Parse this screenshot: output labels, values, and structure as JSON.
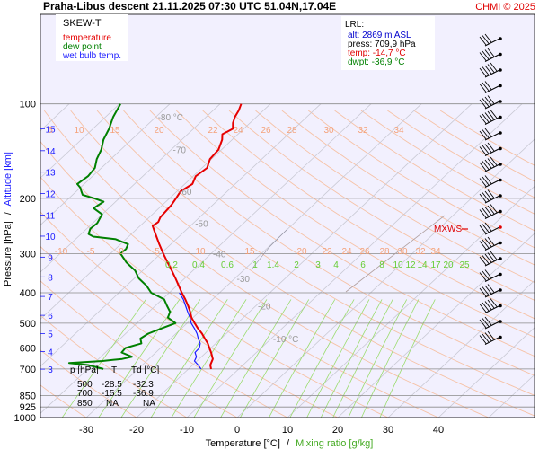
{
  "header": {
    "title": "Praha-Libus   descent   21.11.2025 07:30 UTC   51.04N,17.04E",
    "credit": "CHMI © 2025"
  },
  "legend": {
    "heading": "SKEW-T",
    "items": [
      {
        "label": "temperature",
        "color": "#e60000"
      },
      {
        "label": "dew point",
        "color": "#008000"
      },
      {
        "label": "wet bulb temp.",
        "color": "#1a1aff"
      }
    ]
  },
  "lrl_box": {
    "heading": "LRL:",
    "lines": [
      {
        "text": "alt: 2869 m ASL",
        "color": "#0000cc"
      },
      {
        "text": "press: 709,9 hPa",
        "color": "#000000"
      },
      {
        "text": "temp: -14,7 °C",
        "color": "#e00000"
      },
      {
        "text": "dwpt: -36,9 °C",
        "color": "#008000"
      }
    ]
  },
  "summary_table": {
    "headers": [
      "p [hPa]",
      "T",
      "Td [°C]"
    ],
    "rows": [
      [
        "500",
        "-28.5",
        "-32.3"
      ],
      [
        "700",
        "-15.5",
        "-36.9"
      ],
      [
        "850",
        "NA",
        "NA"
      ]
    ]
  },
  "mxws_label": "MXWS",
  "chart_data": {
    "type": "line",
    "subtype": "skew-t log-p",
    "xlabel": "Temperature [°C]",
    "xlabel_sep": "/",
    "xlabel2": "Mixing ratio [g/kg]",
    "ylabel": "Pressure [hPa]",
    "ylabel_sep": "/",
    "ylabel2": "Altitude [km]",
    "y_scale": "log",
    "y_ticks": [
      100,
      200,
      300,
      400,
      500,
      600,
      700,
      850,
      925,
      1000
    ],
    "altitude_ticks_km": [
      3,
      4,
      5,
      6,
      7,
      8,
      9,
      10,
      11,
      12,
      13,
      14,
      15
    ],
    "x_ticks": [
      -30,
      -20,
      -10,
      0,
      10,
      20,
      30,
      40
    ],
    "isotherm_labels": [
      {
        "t": -80,
        "text": "-80 °C"
      },
      {
        "t": -70,
        "text": "-70"
      },
      {
        "t": -60,
        "text": "-60"
      },
      {
        "t": -50,
        "text": "-50"
      },
      {
        "t": -40,
        "text": "-40"
      },
      {
        "t": -30,
        "text": "-30"
      },
      {
        "t": -20,
        "text": "-20"
      },
      {
        "t": -10,
        "text": "-10 °C"
      }
    ],
    "dry_adiabat_labels_200hPa": [
      "5",
      "10",
      "15",
      "20",
      "22",
      "24",
      "26",
      "28",
      "30",
      "32",
      "34"
    ],
    "dry_adiabat_labels_400hPa": [
      "-10",
      "-5",
      "0",
      "5",
      "10",
      "15",
      "20",
      "22",
      "24",
      "26",
      "28",
      "30",
      "32",
      "34"
    ],
    "mixing_ratio_labels": [
      "0.2",
      "0.4",
      "0.6",
      "1",
      "1.4",
      "2",
      "3",
      "4",
      "6",
      "8",
      "10",
      "12",
      "14",
      "17",
      "20",
      "25"
    ],
    "series": [
      {
        "name": "temperature",
        "color": "#e60000",
        "points": [
          [
            700,
            -15.5
          ],
          [
            680,
            -16.5
          ],
          [
            650,
            -17.3
          ],
          [
            620,
            -19.0
          ],
          [
            600,
            -20.3
          ],
          [
            580,
            -21.6
          ],
          [
            560,
            -23.2
          ],
          [
            540,
            -24.8
          ],
          [
            520,
            -26.7
          ],
          [
            500,
            -28.5
          ],
          [
            480,
            -30.3
          ],
          [
            460,
            -31.8
          ],
          [
            440,
            -33.5
          ],
          [
            420,
            -35.4
          ],
          [
            400,
            -37.5
          ],
          [
            380,
            -39.6
          ],
          [
            360,
            -41.8
          ],
          [
            340,
            -44.2
          ],
          [
            320,
            -46.8
          ],
          [
            300,
            -49.5
          ],
          [
            280,
            -52.3
          ],
          [
            260,
            -55.2
          ],
          [
            245,
            -57.5
          ],
          [
            238,
            -57.2
          ],
          [
            230,
            -57.8
          ],
          [
            220,
            -58.0
          ],
          [
            210,
            -58.2
          ],
          [
            200,
            -58.7
          ],
          [
            190,
            -59.3
          ],
          [
            180,
            -58.5
          ],
          [
            170,
            -59.5
          ],
          [
            160,
            -59.0
          ],
          [
            150,
            -60.3
          ],
          [
            140,
            -60.6
          ],
          [
            130,
            -62.0
          ],
          [
            125,
            -63.1
          ],
          [
            120,
            -62.2
          ],
          [
            115,
            -63.4
          ],
          [
            110,
            -64.3
          ],
          [
            105,
            -64.9
          ],
          [
            100,
            -65.8
          ]
        ]
      },
      {
        "name": "dew point",
        "color": "#008000",
        "points": [
          [
            700,
            -36.9
          ],
          [
            680,
            -40.8
          ],
          [
            670,
            -45.0
          ],
          [
            660,
            -38.8
          ],
          [
            650,
            -35.3
          ],
          [
            640,
            -33.8
          ],
          [
            620,
            -36.8
          ],
          [
            600,
            -37.0
          ],
          [
            580,
            -34.8
          ],
          [
            560,
            -36.0
          ],
          [
            540,
            -35.5
          ],
          [
            520,
            -34.0
          ],
          [
            500,
            -32.3
          ],
          [
            480,
            -35.0
          ],
          [
            460,
            -35.8
          ],
          [
            440,
            -37.7
          ],
          [
            420,
            -39.6
          ],
          [
            400,
            -43.6
          ],
          [
            380,
            -46.0
          ],
          [
            360,
            -49.1
          ],
          [
            340,
            -51.5
          ],
          [
            320,
            -55.0
          ],
          [
            300,
            -58.0
          ],
          [
            290,
            -57.9
          ],
          [
            280,
            -58.5
          ],
          [
            270,
            -62.0
          ],
          [
            265,
            -67.0
          ],
          [
            260,
            -68.5
          ],
          [
            250,
            -69.3
          ],
          [
            240,
            -69.1
          ],
          [
            225,
            -70.0
          ],
          [
            215,
            -73.0
          ],
          [
            205,
            -72.4
          ],
          [
            200,
            -75.0
          ],
          [
            195,
            -78.0
          ],
          [
            190,
            -79.0
          ],
          [
            185,
            -80.0
          ],
          [
            180,
            -81.4
          ],
          [
            170,
            -80.9
          ],
          [
            160,
            -81.3
          ],
          [
            150,
            -82.8
          ],
          [
            140,
            -83.9
          ],
          [
            130,
            -85.6
          ],
          [
            120,
            -86.8
          ],
          [
            110,
            -88.5
          ],
          [
            100,
            -89.8
          ]
        ]
      },
      {
        "name": "wet bulb temp.",
        "color": "#1a1aff",
        "points": [
          [
            700,
            -17.5
          ],
          [
            680,
            -18.9
          ],
          [
            660,
            -20.5
          ],
          [
            640,
            -21.0
          ],
          [
            620,
            -22.2
          ],
          [
            600,
            -22.3
          ],
          [
            580,
            -23.1
          ],
          [
            560,
            -24.5
          ],
          [
            540,
            -25.8
          ],
          [
            520,
            -27.4
          ],
          [
            500,
            -29.2
          ],
          [
            480,
            -30.6
          ],
          [
            460,
            -32.3
          ],
          [
            440,
            -34.0
          ],
          [
            420,
            -35.8
          ],
          [
            400,
            -38.0
          ]
        ]
      }
    ],
    "wind_barb_count": 20
  }
}
